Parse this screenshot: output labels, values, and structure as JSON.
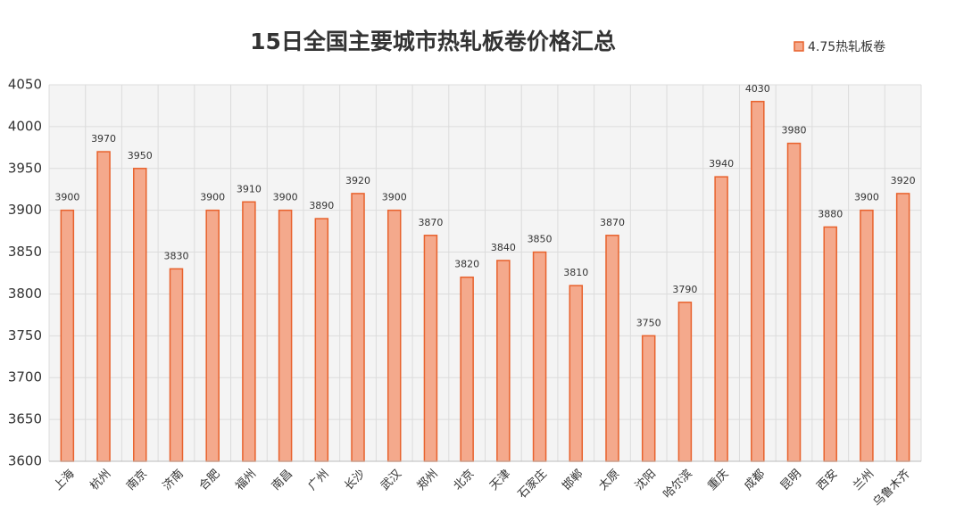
{
  "chart_data": {
    "type": "bar",
    "title": "15日全国主要城市热轧板卷价格汇总",
    "categories": [
      "上海",
      "杭州",
      "南京",
      "济南",
      "合肥",
      "福州",
      "南昌",
      "广州",
      "长沙",
      "武汉",
      "郑州",
      "北京",
      "天津",
      "石家庄",
      "邯郸",
      "太原",
      "沈阳",
      "哈尔滨",
      "重庆",
      "成都",
      "昆明",
      "西安",
      "兰州",
      "乌鲁木齐"
    ],
    "series": [
      {
        "name": "4.75热轧板卷",
        "color": "#f4a98c",
        "edge_color": "#e8622d",
        "values": [
          3900,
          3970,
          3950,
          3830,
          3900,
          3910,
          3900,
          3890,
          3920,
          3900,
          3870,
          3820,
          3840,
          3850,
          3810,
          3870,
          3750,
          3790,
          3940,
          4030,
          3980,
          3880,
          3900,
          3920
        ]
      }
    ],
    "ylim": [
      3600,
      4050
    ],
    "yticks": [
      3600,
      3650,
      3700,
      3750,
      3800,
      3850,
      3900,
      3950,
      4000,
      4050
    ],
    "grid": true,
    "legend": "top-right",
    "data_labels": true
  }
}
